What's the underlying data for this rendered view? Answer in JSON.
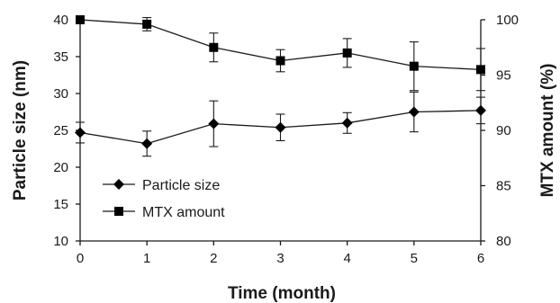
{
  "chart_data": {
    "type": "line",
    "x": [
      0,
      1,
      2,
      3,
      4,
      5,
      6
    ],
    "xlabel": "Time (month)",
    "xlim": [
      0,
      6
    ],
    "x_ticks": [
      "0",
      "1",
      "2",
      "3",
      "4",
      "5",
      "6"
    ],
    "ylabel_left": "Particle size (nm)",
    "ylim_left": [
      10,
      40
    ],
    "y_ticks_left": [
      "10",
      "15",
      "20",
      "25",
      "30",
      "35",
      "40"
    ],
    "ylabel_right": "MTX amount (%)",
    "ylim_right": [
      80,
      100
    ],
    "y_ticks_right": [
      "80",
      "85",
      "90",
      "95",
      "100"
    ],
    "grid": false,
    "legend_position": "lower-left",
    "series": [
      {
        "name": "Particle size",
        "axis": "left",
        "marker": "diamond",
        "values": [
          24.7,
          23.2,
          25.9,
          25.4,
          26.0,
          27.5,
          27.7
        ],
        "errors": [
          1.4,
          1.7,
          3.1,
          1.8,
          1.4,
          2.7,
          1.8
        ]
      },
      {
        "name": "MTX amount",
        "axis": "right",
        "marker": "square",
        "values": [
          100.0,
          99.6,
          97.5,
          96.3,
          97.0,
          95.8,
          95.5
        ],
        "errors": [
          0,
          0.6,
          1.3,
          1.0,
          1.3,
          2.2,
          1.9
        ]
      }
    ]
  }
}
